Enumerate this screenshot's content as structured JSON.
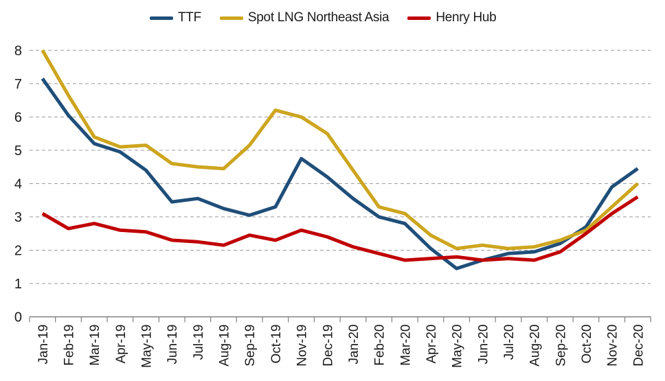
{
  "chart_data": {
    "type": "line",
    "title": "",
    "xlabel": "",
    "ylabel": "",
    "x": [
      "Jan-19",
      "Feb-19",
      "Mar-19",
      "Apr-19",
      "May-19",
      "Jun-19",
      "Jul-19",
      "Aug-19",
      "Sep-19",
      "Oct-19",
      "Nov-19",
      "Dec-19",
      "Jan-20",
      "Feb-20",
      "Mar-20",
      "Apr-20",
      "May-20",
      "Jun-20",
      "Jul-20",
      "Aug-20",
      "Sep-20",
      "Oct-20",
      "Nov-20",
      "Dec-20"
    ],
    "series": [
      {
        "name": "TTF",
        "color": "#1F4E79",
        "values": [
          7.15,
          6.05,
          5.2,
          4.95,
          4.4,
          3.45,
          3.55,
          3.25,
          3.05,
          3.3,
          4.75,
          4.2,
          3.55,
          3.0,
          2.8,
          2.05,
          1.45,
          1.7,
          1.9,
          1.95,
          2.2,
          2.7,
          3.9,
          4.45
        ]
      },
      {
        "name": "Spot LNG Northeast Asia",
        "color": "#CDA51E",
        "values": [
          8.0,
          6.65,
          5.4,
          5.1,
          5.15,
          4.6,
          4.5,
          4.45,
          5.15,
          6.2,
          6.0,
          5.5,
          4.4,
          3.3,
          3.1,
          2.45,
          2.05,
          2.15,
          2.05,
          2.1,
          2.3,
          2.6,
          3.3,
          4.0
        ]
      },
      {
        "name": "Henry Hub",
        "color": "#C00000",
        "values": [
          3.1,
          2.65,
          2.8,
          2.6,
          2.55,
          2.3,
          2.25,
          2.15,
          2.45,
          2.3,
          2.6,
          2.4,
          2.1,
          1.9,
          1.7,
          1.75,
          1.8,
          1.7,
          1.75,
          1.7,
          1.95,
          2.5,
          3.1,
          3.6
        ]
      }
    ],
    "ylim": [
      0,
      8
    ],
    "yticks": [
      0,
      1,
      2,
      3,
      4,
      5,
      6,
      7,
      8
    ],
    "grid": "horizontal-dashed",
    "legend_position": "top",
    "x_label_rotation": -90
  },
  "style": {
    "gridline_color": "#999999",
    "axis_color": "#808080",
    "text_color": "#1a1a1a",
    "background": "#FFFFFF",
    "line_width": 5
  }
}
